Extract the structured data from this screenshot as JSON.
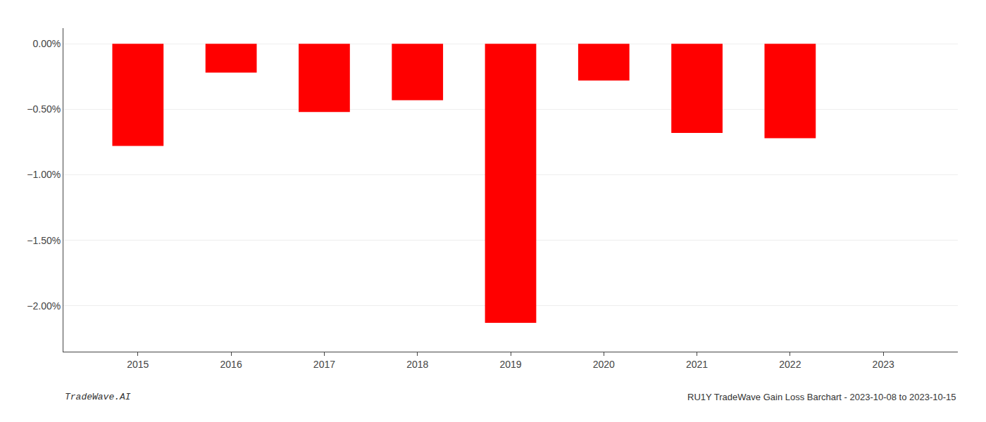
{
  "chart_data": {
    "type": "bar",
    "x": [
      2015,
      2016,
      2017,
      2018,
      2019,
      2020,
      2021,
      2022,
      2023
    ],
    "values": [
      -0.78,
      -0.22,
      -0.52,
      -0.43,
      -2.13,
      -0.28,
      -0.68,
      -0.72,
      0.0
    ],
    "color": "#ff0000",
    "xlim": [
      2014.2,
      2023.8
    ],
    "xticks": [
      2015,
      2016,
      2017,
      2018,
      2019,
      2020,
      2021,
      2022,
      2023
    ],
    "ylim": [
      -2.35,
      0.12
    ],
    "yticks": [
      {
        "value": 0.0,
        "label": "0.00%"
      },
      {
        "value": -0.5,
        "label": "−0.50%"
      },
      {
        "value": -1.0,
        "label": "−1.00%"
      },
      {
        "value": -1.5,
        "label": "−1.50%"
      },
      {
        "value": -2.0,
        "label": "−2.00%"
      }
    ],
    "grid": true,
    "annotations": [
      "TradeWave.AI",
      "RU1Y TradeWave Gain Loss Barchart - 2023-10-08 to 2023-10-15"
    ]
  }
}
